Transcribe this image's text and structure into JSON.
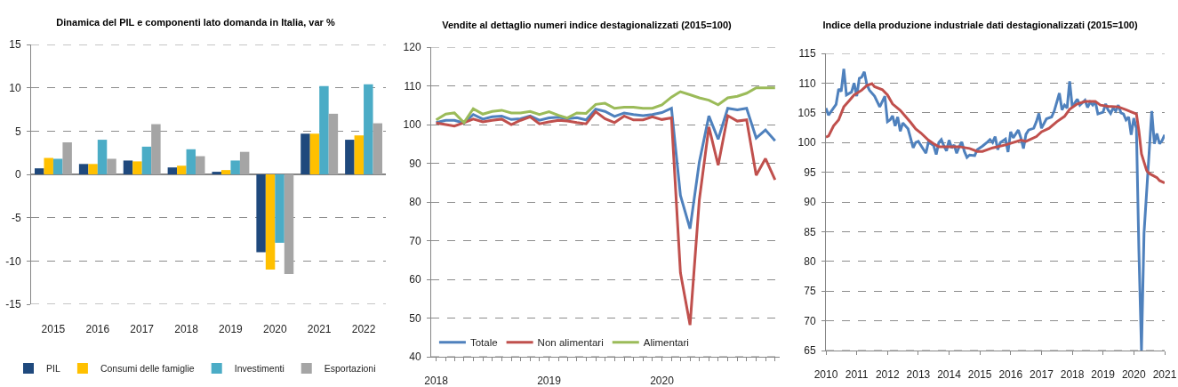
{
  "chart_data": [
    {
      "type": "bar",
      "title": "Dinamica del PIL e componenti lato domanda in Italia, var %",
      "categories": [
        "2015",
        "2016",
        "2017",
        "2018",
        "2019",
        "2020",
        "2021",
        "2022"
      ],
      "series": [
        {
          "name": "PIL",
          "color": "#1f497d",
          "values": [
            0.7,
            1.2,
            1.6,
            0.8,
            0.3,
            -9.0,
            4.7,
            4.0
          ]
        },
        {
          "name": "Consumi delle famiglie",
          "color": "#ffc000",
          "values": [
            1.9,
            1.2,
            1.5,
            1.0,
            0.5,
            -11.0,
            4.7,
            4.5
          ]
        },
        {
          "name": "Investimenti",
          "color": "#4bacc6",
          "values": [
            1.8,
            4.0,
            3.2,
            2.9,
            1.6,
            -7.9,
            10.2,
            10.4
          ]
        },
        {
          "name": "Esportazioni",
          "color": "#a5a5a5",
          "values": [
            3.7,
            1.8,
            5.8,
            2.1,
            2.6,
            -11.5,
            7.0,
            5.9
          ]
        }
      ],
      "ylim": [
        -15,
        15
      ],
      "yticks": [
        -15,
        -10,
        -5,
        0,
        5,
        10,
        15
      ],
      "grid": "y",
      "legend": "bottom"
    },
    {
      "type": "line",
      "title": "Vendite al dettaglio numeri indice destagionalizzati (2015=100)",
      "x": [
        "2018-01",
        "2018-02",
        "2018-03",
        "2018-04",
        "2018-05",
        "2018-06",
        "2018-07",
        "2018-08",
        "2018-09",
        "2018-10",
        "2018-11",
        "2018-12",
        "2019-01",
        "2019-02",
        "2019-03",
        "2019-04",
        "2019-05",
        "2019-06",
        "2019-07",
        "2019-08",
        "2019-09",
        "2019-10",
        "2019-11",
        "2019-12",
        "2020-01",
        "2020-02",
        "2020-03",
        "2020-04",
        "2020-05",
        "2020-06",
        "2020-07",
        "2020-08",
        "2020-09",
        "2020-10",
        "2020-11",
        "2020-12",
        "2021-01"
      ],
      "series": [
        {
          "name": "Totale",
          "color": "#4f81bd",
          "values": [
            100.5,
            101.1,
            101.1,
            100.4,
            102.6,
            101.4,
            102.0,
            102.2,
            101.3,
            101.5,
            102.2,
            101.1,
            101.7,
            101.9,
            101.5,
            101.8,
            101.2,
            104.0,
            103.4,
            102.1,
            103.0,
            102.6,
            102.3,
            102.6,
            103.1,
            104.2,
            81.7,
            73.1,
            90.3,
            102.2,
            96.2,
            104.2,
            103.8,
            104.2,
            96.5,
            98.6,
            95.8
          ]
        },
        {
          "name": "Non alimentari",
          "color": "#c0504d",
          "values": [
            100.4,
            100.0,
            99.6,
            100.5,
            101.4,
            100.7,
            101.1,
            101.4,
            100.0,
            101.1,
            102.0,
            100.2,
            100.7,
            101.1,
            100.9,
            100.5,
            100.2,
            103.3,
            101.5,
            100.5,
            102.2,
            101.2,
            101.2,
            102.0,
            101.3,
            101.7,
            61.7,
            48.2,
            80.5,
            99.4,
            89.5,
            102.3,
            100.9,
            101.2,
            86.9,
            91.2,
            85.7
          ]
        },
        {
          "name": "Alimentari",
          "color": "#9bbb59",
          "values": [
            101.2,
            102.7,
            103.0,
            100.5,
            104.1,
            102.7,
            103.4,
            103.7,
            103.0,
            103.0,
            103.4,
            102.6,
            103.3,
            102.4,
            101.7,
            103.0,
            102.9,
            105.2,
            105.5,
            104.2,
            104.5,
            104.5,
            104.2,
            104.2,
            105.1,
            107.1,
            108.5,
            107.7,
            106.9,
            106.3,
            105.1,
            106.9,
            107.3,
            108.1,
            109.5,
            109.5,
            109.5
          ]
        }
      ],
      "xlim": [
        "2017-12-16",
        "2021-01-16"
      ],
      "xticks": [
        {
          "value": "2018-01",
          "label": "2018"
        },
        {
          "value": "2018-02",
          "label": null
        },
        {
          "value": "2018-03",
          "label": null
        },
        {
          "value": "2018-04",
          "label": null
        },
        {
          "value": "2018-05",
          "label": null
        },
        {
          "value": "2018-06",
          "label": null
        },
        {
          "value": "2018-07",
          "label": null
        },
        {
          "value": "2018-08",
          "label": null
        },
        {
          "value": "2018-09",
          "label": null
        },
        {
          "value": "2018-10",
          "label": null
        },
        {
          "value": "2018-11",
          "label": null
        },
        {
          "value": "2018-12",
          "label": null
        },
        {
          "value": "2019-01",
          "label": "2019"
        },
        {
          "value": "2019-02",
          "label": null
        },
        {
          "value": "2019-03",
          "label": null
        },
        {
          "value": "2019-04",
          "label": null
        },
        {
          "value": "2019-05",
          "label": null
        },
        {
          "value": "2019-06",
          "label": null
        },
        {
          "value": "2019-07",
          "label": null
        },
        {
          "value": "2019-08",
          "label": null
        },
        {
          "value": "2019-09",
          "label": null
        },
        {
          "value": "2019-10",
          "label": null
        },
        {
          "value": "2019-11",
          "label": null
        },
        {
          "value": "2019-12",
          "label": null
        },
        {
          "value": "2020-01",
          "label": "2020"
        },
        {
          "value": "2020-02",
          "label": null
        },
        {
          "value": "2020-03",
          "label": null
        },
        {
          "value": "2020-04",
          "label": null
        },
        {
          "value": "2020-05",
          "label": null
        },
        {
          "value": "2020-06",
          "label": null
        },
        {
          "value": "2020-07",
          "label": null
        },
        {
          "value": "2020-08",
          "label": null
        },
        {
          "value": "2020-09",
          "label": null
        },
        {
          "value": "2020-10",
          "label": null
        },
        {
          "value": "2020-11",
          "label": null
        },
        {
          "value": "2020-12",
          "label": null
        },
        {
          "value": "2021-01",
          "label": null
        }
      ],
      "ylim": [
        40,
        120
      ],
      "yticks": [
        40,
        50,
        60,
        70,
        80,
        90,
        100,
        110,
        120
      ],
      "grid": "y",
      "legend": "bottom left"
    },
    {
      "type": "line",
      "title": "Indice della produzione industriale dati destagionalizzati (2015=100)",
      "series": [
        {
          "color": "#4f81bd",
          "x": [
            "2010-01",
            "2010-02",
            "2010-05",
            "2010-06",
            "2010-07",
            "2010-08",
            "2010-09",
            "2010-11",
            "2010-12",
            "2011-01",
            "2011-02",
            "2011-03",
            "2011-04",
            "2011-05",
            "2011-06",
            "2011-08",
            "2011-10",
            "2011-12",
            "2012-01",
            "2012-02",
            "2012-03",
            "2012-04",
            "2012-05",
            "2012-06",
            "2012-07",
            "2012-09",
            "2012-11",
            "2012-12",
            "2013-01",
            "2013-04",
            "2013-05",
            "2013-07",
            "2013-08",
            "2013-09",
            "2013-10",
            "2013-11",
            "2013-12",
            "2014-01",
            "2014-02",
            "2014-03",
            "2014-04",
            "2014-05",
            "2014-06",
            "2014-07",
            "2014-08",
            "2014-09",
            "2014-11",
            "2014-12",
            "2015-01",
            "2015-02",
            "2015-04",
            "2015-05",
            "2015-06",
            "2015-07",
            "2015-08",
            "2015-09",
            "2015-11",
            "2015-12",
            "2016-01",
            "2016-02",
            "2016-04",
            "2016-05",
            "2016-06",
            "2016-07",
            "2016-08",
            "2016-10",
            "2016-11",
            "2016-12",
            "2017-01",
            "2017-03",
            "2017-05",
            "2017-06",
            "2017-08",
            "2017-09",
            "2017-10",
            "2017-11",
            "2017-12",
            "2018-01",
            "2018-03",
            "2018-04",
            "2018-06",
            "2018-07",
            "2018-08",
            "2018-09",
            "2018-10",
            "2018-11",
            "2019-01",
            "2019-02",
            "2019-03",
            "2019-04",
            "2019-05",
            "2019-06",
            "2019-07",
            "2019-08",
            "2019-09",
            "2019-10",
            "2019-11",
            "2019-12",
            "2020-01",
            "2020-02",
            "2020-03",
            "2020-04",
            "2020-05",
            "2020-08",
            "2020-09",
            "2020-10",
            "2020-11",
            "2020-12",
            "2021-01"
          ],
          "values": [
            105.8,
            104.6,
            106.4,
            109.0,
            108.6,
            112.4,
            108.0,
            108.5,
            110.0,
            107.8,
            110.8,
            111.0,
            111.9,
            109.8,
            108.8,
            107.8,
            106.0,
            107.8,
            103.5,
            103.8,
            104.5,
            102.8,
            104.3,
            101.9,
            103.3,
            102.3,
            99.1,
            100.0,
            100.2,
            98.2,
            100.1,
            99.5,
            98.0,
            100.0,
            100.5,
            99.4,
            98.6,
            100.4,
            99.1,
            99.6,
            98.2,
            99.3,
            100.1,
            98.5,
            97.5,
            97.9,
            97.8,
            98.8,
            99.1,
            99.4,
            100.1,
            100.5,
            100.0,
            101.0,
            98.8,
            100.0,
            100.6,
            98.4,
            101.8,
            100.8,
            102.1,
            100.8,
            99.0,
            101.4,
            102.1,
            102.4,
            103.5,
            104.9,
            102.4,
            104.0,
            104.3,
            105.3,
            108.3,
            105.5,
            106.3,
            105.8,
            110.3,
            106.0,
            107.3,
            106.3,
            107.1,
            105.9,
            106.8,
            106.3,
            106.9,
            104.8,
            105.1,
            106.5,
            105.5,
            104.9,
            105.8,
            105.3,
            106.3,
            105.0,
            104.8,
            103.8,
            104.3,
            101.3,
            104.1,
            102.4,
            82.0,
            65,
            84.7,
            105.3,
            99.8,
            101.5,
            99.8,
            100.3,
            101.3
          ]
        },
        {
          "color": "#c0504d",
          "x": [
            "2010-01",
            "2010-02",
            "2010-04",
            "2010-06",
            "2010-08",
            "2010-10",
            "2010-12",
            "2011-03",
            "2011-05",
            "2011-07",
            "2011-08",
            "2011-11",
            "2012-01",
            "2012-03",
            "2012-06",
            "2012-08",
            "2012-10",
            "2012-12",
            "2013-02",
            "2013-05",
            "2013-07",
            "2013-09",
            "2013-12",
            "2014-05",
            "2014-09",
            "2014-12",
            "2015-02",
            "2015-06",
            "2015-11",
            "2016-05",
            "2016-07",
            "2016-11",
            "2017-01",
            "2017-04",
            "2017-07",
            "2017-10",
            "2017-12",
            "2018-03",
            "2018-06",
            "2018-10",
            "2018-12",
            "2019-03",
            "2019-07",
            "2019-10",
            "2020-02",
            "2020-03",
            "2020-04",
            "2020-06",
            "2020-07",
            "2020-10",
            "2020-11",
            "2021-01"
          ],
          "values": [
            100.9,
            101.1,
            102.8,
            103.8,
            106.0,
            107.0,
            108.0,
            108.8,
            109.6,
            109.9,
            109.4,
            108.9,
            108.0,
            106.5,
            105.4,
            104.4,
            103.4,
            102.3,
            101.6,
            100.4,
            99.8,
            99.3,
            99.3,
            99.3,
            99.0,
            98.5,
            98.5,
            99.1,
            99.6,
            100.4,
            100.2,
            101.0,
            101.8,
            102.4,
            103.5,
            104.4,
            105.6,
            106.5,
            106.9,
            106.9,
            106.3,
            106.1,
            106.0,
            105.5,
            104.8,
            102.0,
            98.1,
            95.3,
            94.8,
            94.1,
            93.6,
            93.2
          ]
        }
      ],
      "xlim": [
        "2010-01",
        "2021-01"
      ],
      "xticks": [
        {
          "value": "2010-01",
          "label": "2010"
        },
        {
          "value": "2011-01",
          "label": "2011"
        },
        {
          "value": "2012-01",
          "label": "2012"
        },
        {
          "value": "2013-01",
          "label": "2013"
        },
        {
          "value": "2014-01",
          "label": "2014"
        },
        {
          "value": "2015-01",
          "label": "2015"
        },
        {
          "value": "2016-01",
          "label": "2016"
        },
        {
          "value": "2017-01",
          "label": "2017"
        },
        {
          "value": "2018-01",
          "label": "2018"
        },
        {
          "value": "2019-01",
          "label": "2019"
        },
        {
          "value": "2020-01",
          "label": "2020"
        },
        {
          "value": "2021-01",
          "label": "2021"
        }
      ],
      "ylim": [
        65,
        115
      ],
      "yticks": [
        65,
        70,
        75,
        80,
        85,
        90,
        95,
        100,
        105,
        110,
        115
      ],
      "grid": "y",
      "legend": false
    }
  ]
}
